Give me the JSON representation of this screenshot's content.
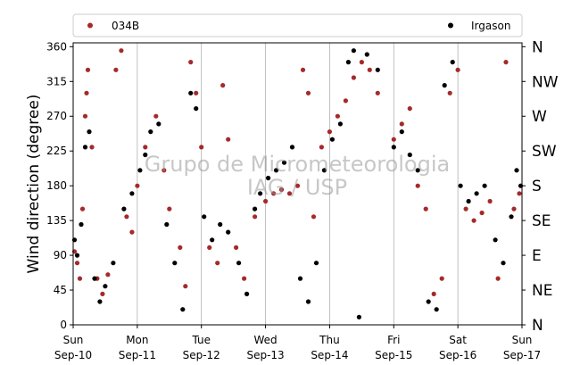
{
  "chart_data": {
    "type": "scatter",
    "ylabel": "Wind direction (degree)",
    "ylim": [
      0,
      365
    ],
    "yticks": [
      0,
      45,
      90,
      135,
      180,
      225,
      270,
      315,
      360
    ],
    "compass_ticks": [
      {
        "value": 0,
        "label": "N"
      },
      {
        "value": 45,
        "label": "NE"
      },
      {
        "value": 90,
        "label": "E"
      },
      {
        "value": 135,
        "label": "SE"
      },
      {
        "value": 180,
        "label": "S"
      },
      {
        "value": 225,
        "label": "SW"
      },
      {
        "value": 270,
        "label": "W"
      },
      {
        "value": 315,
        "label": "NW"
      },
      {
        "value": 360,
        "label": "N"
      }
    ],
    "xlim": [
      "2017-09-10",
      "2017-09-17"
    ],
    "xticks": [
      {
        "day": "Sun",
        "date": "Sep-10"
      },
      {
        "day": "Mon",
        "date": "Sep-11"
      },
      {
        "day": "Tue",
        "date": "Sep-12"
      },
      {
        "day": "Wed",
        "date": "Sep-13"
      },
      {
        "day": "Thu",
        "date": "Sep-14"
      },
      {
        "day": "Fri",
        "date": "Sep-15"
      },
      {
        "day": "Sat",
        "date": "Sep-16"
      },
      {
        "day": "Sun",
        "date": "Sep-17"
      }
    ],
    "grid": "vertical",
    "legend_position": "top",
    "watermark": [
      "Grupo de Micrometeorologia",
      "IAG / USP"
    ],
    "series": [
      {
        "name": "034B",
        "color": "#a52a2a",
        "points": [
          [
            "2017-09-10 00:30",
            95
          ],
          [
            "2017-09-10 01:30",
            80
          ],
          [
            "2017-09-10 02:30",
            60
          ],
          [
            "2017-09-10 03:30",
            150
          ],
          [
            "2017-09-10 04:30",
            270
          ],
          [
            "2017-09-10 05:00",
            300
          ],
          [
            "2017-09-10 05:30",
            330
          ],
          [
            "2017-09-10 07:00",
            230
          ],
          [
            "2017-09-10 09:00",
            60
          ],
          [
            "2017-09-10 11:00",
            40
          ],
          [
            "2017-09-10 13:00",
            65
          ],
          [
            "2017-09-10 16:00",
            330
          ],
          [
            "2017-09-10 18:00",
            355
          ],
          [
            "2017-09-10 20:00",
            140
          ],
          [
            "2017-09-10 22:00",
            120
          ],
          [
            "2017-09-11 00:00",
            180
          ],
          [
            "2017-09-11 03:00",
            230
          ],
          [
            "2017-09-11 07:00",
            270
          ],
          [
            "2017-09-11 10:00",
            200
          ],
          [
            "2017-09-11 12:00",
            150
          ],
          [
            "2017-09-11 16:00",
            100
          ],
          [
            "2017-09-11 18:00",
            50
          ],
          [
            "2017-09-11 20:00",
            340
          ],
          [
            "2017-09-11 22:00",
            300
          ],
          [
            "2017-09-12 00:00",
            230
          ],
          [
            "2017-09-12 03:00",
            100
          ],
          [
            "2017-09-12 06:00",
            80
          ],
          [
            "2017-09-12 08:00",
            310
          ],
          [
            "2017-09-12 10:00",
            240
          ],
          [
            "2017-09-12 13:00",
            100
          ],
          [
            "2017-09-12 16:00",
            60
          ],
          [
            "2017-09-12 20:00",
            140
          ],
          [
            "2017-09-13 00:00",
            160
          ],
          [
            "2017-09-13 03:00",
            170
          ],
          [
            "2017-09-13 06:00",
            175
          ],
          [
            "2017-09-13 09:00",
            170
          ],
          [
            "2017-09-13 12:00",
            180
          ],
          [
            "2017-09-13 14:00",
            330
          ],
          [
            "2017-09-13 16:00",
            300
          ],
          [
            "2017-09-13 18:00",
            140
          ],
          [
            "2017-09-13 21:00",
            230
          ],
          [
            "2017-09-14 00:00",
            250
          ],
          [
            "2017-09-14 03:00",
            270
          ],
          [
            "2017-09-14 06:00",
            290
          ],
          [
            "2017-09-14 09:00",
            320
          ],
          [
            "2017-09-14 12:00",
            340
          ],
          [
            "2017-09-14 15:00",
            330
          ],
          [
            "2017-09-14 18:00",
            300
          ],
          [
            "2017-09-15 00:00",
            240
          ],
          [
            "2017-09-15 03:00",
            260
          ],
          [
            "2017-09-15 06:00",
            280
          ],
          [
            "2017-09-15 09:00",
            180
          ],
          [
            "2017-09-15 12:00",
            150
          ],
          [
            "2017-09-15 15:00",
            40
          ],
          [
            "2017-09-15 18:00",
            60
          ],
          [
            "2017-09-15 21:00",
            300
          ],
          [
            "2017-09-16 00:00",
            330
          ],
          [
            "2017-09-16 03:00",
            150
          ],
          [
            "2017-09-16 06:00",
            135
          ],
          [
            "2017-09-16 09:00",
            145
          ],
          [
            "2017-09-16 12:00",
            160
          ],
          [
            "2017-09-16 15:00",
            60
          ],
          [
            "2017-09-16 18:00",
            340
          ],
          [
            "2017-09-16 21:00",
            150
          ],
          [
            "2017-09-16 23:00",
            170
          ]
        ]
      },
      {
        "name": "Irgason",
        "color": "#000000",
        "points": [
          [
            "2017-09-10 00:30",
            110
          ],
          [
            "2017-09-10 01:30",
            90
          ],
          [
            "2017-09-10 03:00",
            130
          ],
          [
            "2017-09-10 04:30",
            230
          ],
          [
            "2017-09-10 06:00",
            250
          ],
          [
            "2017-09-10 08:00",
            60
          ],
          [
            "2017-09-10 10:00",
            30
          ],
          [
            "2017-09-10 12:00",
            50
          ],
          [
            "2017-09-10 15:00",
            80
          ],
          [
            "2017-09-10 19:00",
            150
          ],
          [
            "2017-09-10 22:00",
            170
          ],
          [
            "2017-09-11 01:00",
            200
          ],
          [
            "2017-09-11 03:00",
            220
          ],
          [
            "2017-09-11 05:00",
            250
          ],
          [
            "2017-09-11 08:00",
            260
          ],
          [
            "2017-09-11 11:00",
            130
          ],
          [
            "2017-09-11 14:00",
            80
          ],
          [
            "2017-09-11 17:00",
            20
          ],
          [
            "2017-09-11 20:00",
            300
          ],
          [
            "2017-09-11 22:00",
            280
          ],
          [
            "2017-09-12 01:00",
            140
          ],
          [
            "2017-09-12 04:00",
            110
          ],
          [
            "2017-09-12 07:00",
            130
          ],
          [
            "2017-09-12 10:00",
            120
          ],
          [
            "2017-09-12 14:00",
            80
          ],
          [
            "2017-09-12 17:00",
            40
          ],
          [
            "2017-09-12 20:00",
            150
          ],
          [
            "2017-09-12 22:00",
            170
          ],
          [
            "2017-09-13 01:00",
            190
          ],
          [
            "2017-09-13 04:00",
            200
          ],
          [
            "2017-09-13 07:00",
            210
          ],
          [
            "2017-09-13 10:00",
            230
          ],
          [
            "2017-09-13 13:00",
            60
          ],
          [
            "2017-09-13 16:00",
            30
          ],
          [
            "2017-09-13 19:00",
            80
          ],
          [
            "2017-09-13 22:00",
            200
          ],
          [
            "2017-09-14 01:00",
            240
          ],
          [
            "2017-09-14 04:00",
            260
          ],
          [
            "2017-09-14 07:00",
            340
          ],
          [
            "2017-09-14 09:00",
            355
          ],
          [
            "2017-09-14 11:00",
            10
          ],
          [
            "2017-09-14 14:00",
            350
          ],
          [
            "2017-09-14 18:00",
            330
          ],
          [
            "2017-09-15 00:00",
            230
          ],
          [
            "2017-09-15 03:00",
            250
          ],
          [
            "2017-09-15 06:00",
            220
          ],
          [
            "2017-09-15 09:00",
            200
          ],
          [
            "2017-09-15 13:00",
            30
          ],
          [
            "2017-09-15 16:00",
            20
          ],
          [
            "2017-09-15 19:00",
            310
          ],
          [
            "2017-09-15 22:00",
            340
          ],
          [
            "2017-09-16 01:00",
            180
          ],
          [
            "2017-09-16 04:00",
            160
          ],
          [
            "2017-09-16 07:00",
            170
          ],
          [
            "2017-09-16 10:00",
            180
          ],
          [
            "2017-09-16 14:00",
            110
          ],
          [
            "2017-09-16 17:00",
            80
          ],
          [
            "2017-09-16 20:00",
            140
          ],
          [
            "2017-09-16 22:00",
            200
          ],
          [
            "2017-09-16 23:30",
            180
          ]
        ]
      }
    ]
  }
}
